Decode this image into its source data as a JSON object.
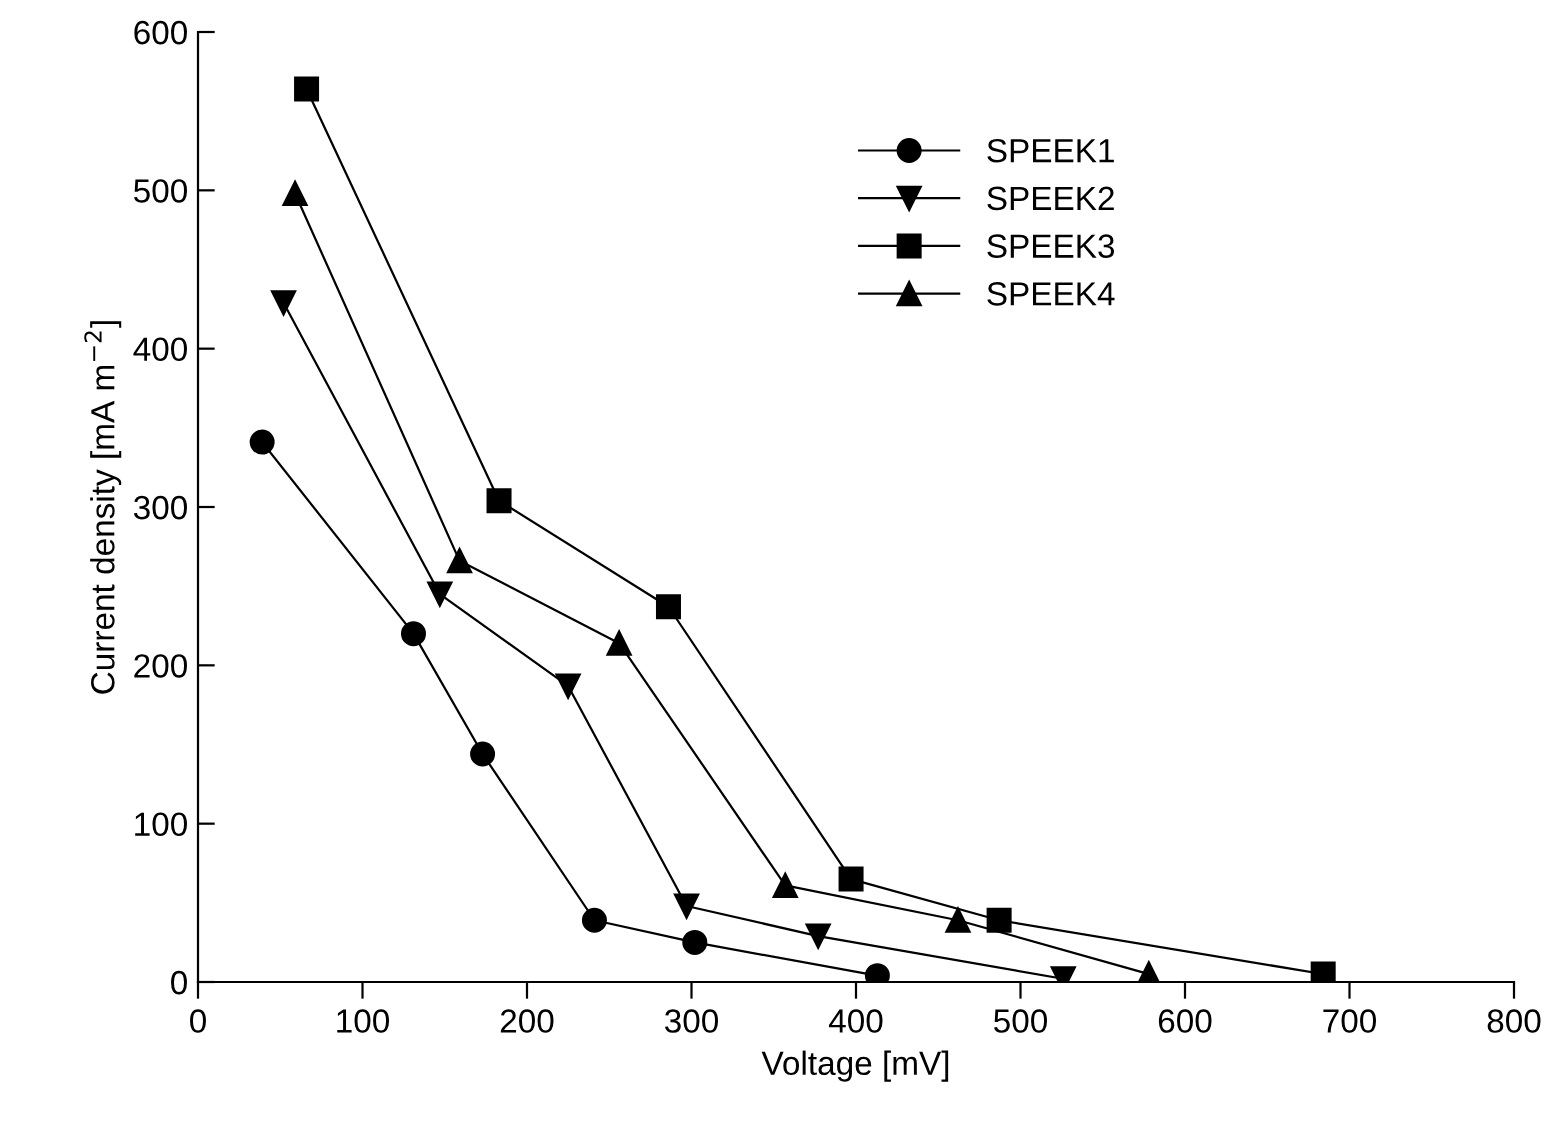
{
  "chart_data": {
    "type": "line",
    "xlabel": "Voltage [mV]",
    "ylabel": "Current density [mA m$^{−2}$]",
    "xlim": [
      0,
      800
    ],
    "ylim": [
      0,
      600
    ],
    "xticks": [
      0,
      100,
      200,
      300,
      400,
      500,
      600,
      700,
      800
    ],
    "yticks": [
      0,
      100,
      200,
      300,
      400,
      500,
      600
    ],
    "grid": false,
    "legend": "top right",
    "line_style": "solid",
    "series": [
      {
        "name": "SPEEK1",
        "color": "#000000",
        "marker": "circle",
        "x": [
          39,
          131,
          173,
          241,
          302,
          413
        ],
        "values": [
          341,
          220,
          144,
          39,
          25,
          4
        ]
      },
      {
        "name": "SPEEK2",
        "color": "#000000",
        "marker": "triangle_down",
        "x": [
          52,
          147,
          225,
          297,
          377,
          526
        ],
        "values": [
          429,
          245,
          187,
          48,
          29,
          2
        ]
      },
      {
        "name": "SPEEK3",
        "color": "#000000",
        "marker": "square",
        "x": [
          66,
          183,
          286,
          397,
          487,
          684
        ],
        "values": [
          564,
          304,
          237,
          65,
          39,
          5
        ]
      },
      {
        "name": "SPEEK4",
        "color": "#000000",
        "marker": "triangle",
        "x": [
          59,
          159,
          256,
          357,
          462,
          578
        ],
        "values": [
          498,
          266,
          214,
          61,
          39,
          5
        ]
      }
    ]
  }
}
